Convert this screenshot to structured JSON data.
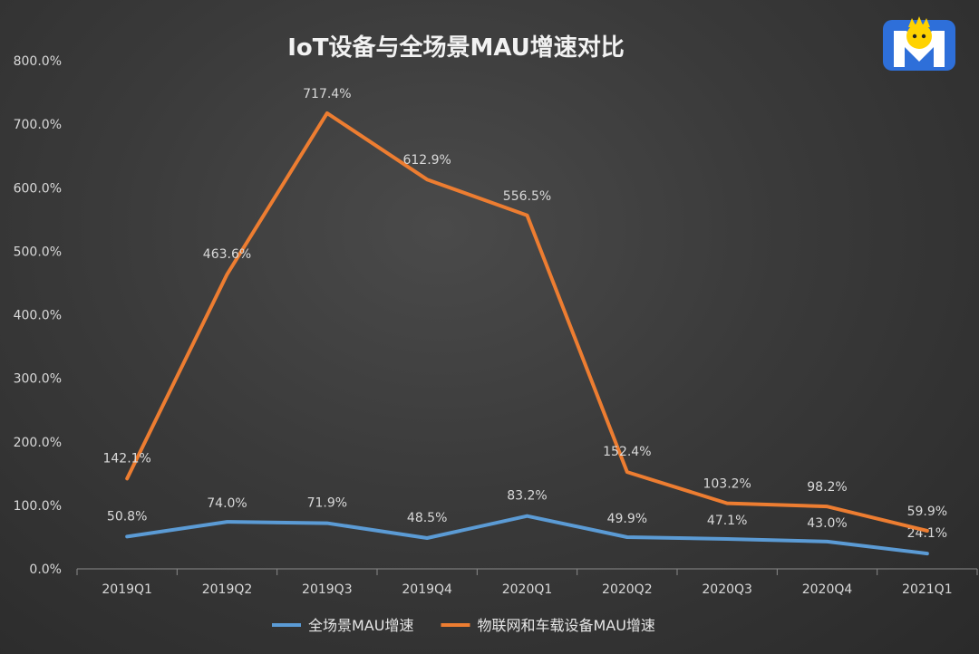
{
  "chart_data": {
    "type": "line",
    "title": "IoT设备与全场景MAU增速对比",
    "categories": [
      "2019Q1",
      "2019Q2",
      "2019Q3",
      "2019Q4",
      "2020Q1",
      "2020Q2",
      "2020Q3",
      "2020Q4",
      "2021Q1"
    ],
    "ylim": [
      0,
      800
    ],
    "yticks": [
      "0.0%",
      "100.0%",
      "200.0%",
      "300.0%",
      "400.0%",
      "500.0%",
      "600.0%",
      "700.0%",
      "800.0%"
    ],
    "grid": false,
    "legend_position": "bottom",
    "series": [
      {
        "name": "全场景MAU增速",
        "color": "#5b9bd5",
        "values": [
          50.8,
          74.0,
          71.9,
          48.5,
          83.2,
          49.9,
          47.1,
          43.0,
          24.1
        ],
        "labels": [
          "50.8%",
          "74.0%",
          "71.9%",
          "48.5%",
          "83.2%",
          "49.9%",
          "47.1%",
          "43.0%",
          "24.1%"
        ]
      },
      {
        "name": "物联网和车载设备MAU增速",
        "color": "#ed7d31",
        "values": [
          142.1,
          463.6,
          717.4,
          612.9,
          556.5,
          152.4,
          103.2,
          98.2,
          59.9
        ],
        "labels": [
          "142.1%",
          "463.6%",
          "717.4%",
          "612.9%",
          "556.5%",
          "152.4%",
          "103.2%",
          "98.2%",
          "59.9%"
        ]
      }
    ]
  },
  "logo": {
    "icon": "monster-m-logo-icon",
    "colors": [
      "#2e6fd9",
      "#ffd200"
    ]
  }
}
